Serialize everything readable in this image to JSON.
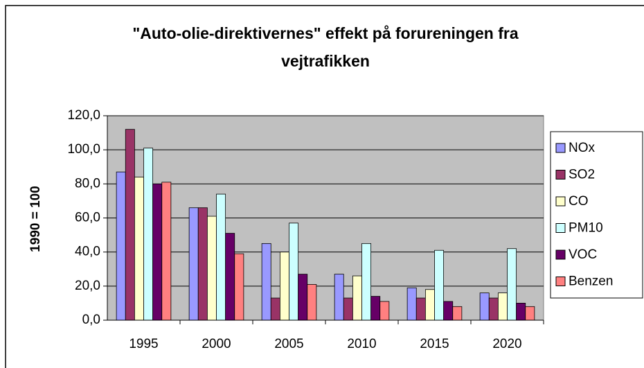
{
  "chart_data": {
    "type": "bar",
    "title": "\"Auto-olie-direktivernes\" effekt på forureningen fra vejtrafikken",
    "ylabel": "1990 = 100",
    "categories": [
      "1995",
      "2000",
      "2005",
      "2010",
      "2015",
      "2020"
    ],
    "series": [
      {
        "name": "NOx",
        "color": "#9999ff",
        "values": [
          87,
          66,
          45,
          27,
          19,
          16
        ]
      },
      {
        "name": "SO2",
        "color": "#993366",
        "values": [
          112,
          66,
          13,
          13,
          13,
          13
        ]
      },
      {
        "name": "CO",
        "color": "#ffffcc",
        "values": [
          84,
          61,
          40,
          26,
          18,
          16
        ]
      },
      {
        "name": "PM10",
        "color": "#ccffff",
        "values": [
          101,
          74,
          57,
          45,
          41,
          42
        ]
      },
      {
        "name": "VOC",
        "color": "#660066",
        "values": [
          80,
          51,
          27,
          14,
          11,
          10
        ]
      },
      {
        "name": "Benzen",
        "color": "#ff8080",
        "values": [
          81,
          39,
          21,
          11,
          8,
          8
        ]
      }
    ],
    "ylim": [
      0,
      120
    ],
    "yticks": [
      {
        "value": 0,
        "label": "0,0"
      },
      {
        "value": 20,
        "label": "20,0"
      },
      {
        "value": 40,
        "label": "40,0"
      },
      {
        "value": 60,
        "label": "60,0"
      },
      {
        "value": 80,
        "label": "80,0"
      },
      {
        "value": 100,
        "label": "100,0"
      },
      {
        "value": 120,
        "label": "120,0"
      }
    ],
    "grid": true,
    "legend": "right",
    "plot_color": "#c0c0c0"
  }
}
